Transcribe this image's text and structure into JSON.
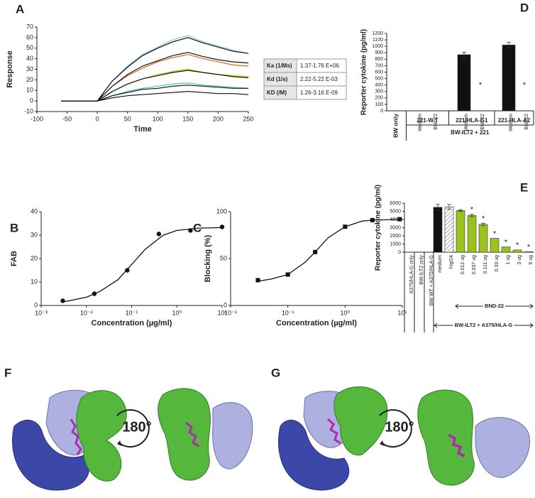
{
  "chart_data": [
    {
      "panel": "A",
      "type": "line",
      "xlabel": "Time",
      "ylabel": "Response",
      "xlim": [
        -100,
        250
      ],
      "xticks": [
        -100,
        -50,
        0,
        50,
        100,
        150,
        200,
        250
      ],
      "ylim": [
        -10,
        70
      ],
      "yticks": [
        -10,
        0,
        10,
        20,
        30,
        40,
        50,
        60,
        70
      ],
      "x": [
        -60,
        0,
        25,
        50,
        75,
        100,
        125,
        150,
        175,
        200,
        225,
        250
      ],
      "series": [
        {
          "color": "#8ec5e6",
          "values": [
            0,
            0,
            19,
            33,
            44,
            51,
            58,
            62,
            56,
            52,
            48,
            45
          ]
        },
        {
          "color": "#111111",
          "values": [
            0,
            0,
            19,
            32,
            43,
            50,
            56,
            60,
            55,
            51,
            47,
            45
          ]
        },
        {
          "color": "#e8601c",
          "values": [
            0,
            0,
            14,
            24,
            31,
            37,
            41,
            44,
            40,
            37,
            34,
            33
          ]
        },
        {
          "color": "#111111",
          "values": [
            0,
            0,
            14,
            25,
            33,
            38,
            43,
            46,
            42,
            39,
            37,
            36
          ]
        },
        {
          "color": "#c8c400",
          "values": [
            0,
            0,
            9,
            16,
            21,
            25,
            28,
            30,
            27,
            25,
            24,
            23
          ]
        },
        {
          "color": "#111111",
          "values": [
            0,
            0,
            9,
            16,
            21,
            24,
            27,
            29,
            27,
            25,
            23,
            22
          ]
        },
        {
          "color": "#3cc0c8",
          "values": [
            0,
            0,
            5,
            9,
            12,
            14,
            16,
            17,
            15,
            14,
            13,
            12
          ]
        },
        {
          "color": "#111111",
          "values": [
            0,
            0,
            5,
            8,
            11,
            12,
            14,
            15,
            14,
            13,
            12,
            12
          ]
        },
        {
          "color": "#111111",
          "values": [
            0,
            0,
            3,
            5,
            6,
            7,
            8,
            9,
            8,
            7,
            7,
            6
          ]
        }
      ]
    },
    {
      "panel": "D",
      "type": "bar",
      "ylabel": "Reporter cytokine (pg/ml)",
      "ylim": [
        0,
        1200
      ],
      "yticks": [
        0,
        100,
        200,
        300,
        400,
        500,
        600,
        700,
        800,
        900,
        1000,
        1100,
        1200
      ],
      "categories": [
        "BW only",
        "Medium",
        "BND22",
        "Medium",
        "BND22",
        "Medium",
        "BND22"
      ],
      "values": [
        0,
        0,
        0,
        870,
        0,
        1020,
        0
      ],
      "errors": [
        null,
        null,
        null,
        40,
        null,
        45,
        null
      ],
      "annotations": [
        null,
        null,
        null,
        null,
        "*",
        null,
        "*"
      ],
      "colors": [
        "#111111",
        "#111111",
        "#111111",
        "#111111",
        "#111111",
        "#111111",
        "#111111"
      ],
      "groups": [
        {
          "label": "221-W.T",
          "first": 1,
          "last": 2
        },
        {
          "label": "221/HLA-G1",
          "first": 3,
          "last": 4
        },
        {
          "label": "221-HLA-A2",
          "first": 5,
          "last": 6
        }
      ],
      "spans": [
        {
          "label": "BW-ILT2 + 221",
          "first": 1,
          "last": 6
        }
      ]
    },
    {
      "panel": "B",
      "type": "scatter",
      "xlabel": "Concentration (µg/ml)",
      "ylabel": "FAB",
      "log_x": true,
      "marker": "circle",
      "xlim": [
        0.001,
        10
      ],
      "xticks": [
        {
          "value": 0.001,
          "label": "10⁻³"
        },
        {
          "value": 0.01,
          "label": "10⁻²"
        },
        {
          "value": 0.1,
          "label": "10⁻¹"
        },
        {
          "value": 1,
          "label": "10⁰"
        },
        {
          "value": 10,
          "label": "10¹"
        }
      ],
      "ylim": [
        0,
        40
      ],
      "yticks": [
        0,
        10,
        20,
        30,
        40
      ],
      "x": [
        0.003,
        0.015,
        0.08,
        0.4,
        2,
        10
      ],
      "values": [
        2,
        5,
        15,
        30.5,
        32,
        33.5
      ],
      "fit": {
        "x": [
          0.003,
          0.01,
          0.02,
          0.05,
          0.1,
          0.2,
          0.5,
          1,
          3,
          10
        ],
        "values": [
          1.5,
          3.5,
          6,
          11,
          17.5,
          24,
          30,
          32,
          33,
          33.2
        ]
      }
    },
    {
      "panel": "C",
      "type": "scatter",
      "xlabel": "Concentration (µg/ml)",
      "ylabel": "Blocking (%)",
      "log_x": true,
      "marker": "square",
      "xlim": [
        0.01,
        10
      ],
      "xticks": [
        {
          "value": 0.01,
          "label": "10⁻²"
        },
        {
          "value": 0.1,
          "label": "10⁻¹"
        },
        {
          "value": 1,
          "label": "10⁰"
        },
        {
          "value": 10,
          "label": "10¹"
        }
      ],
      "ylim": [
        0,
        100
      ],
      "yticks": [
        0,
        50,
        100
      ],
      "x": [
        0.03,
        0.1,
        0.3,
        1,
        3,
        9
      ],
      "values": [
        27,
        33,
        57,
        84,
        91,
        92
      ],
      "fit": {
        "x": [
          0.03,
          0.05,
          0.1,
          0.2,
          0.3,
          0.5,
          1,
          2,
          3,
          10
        ],
        "values": [
          26,
          28,
          33,
          46,
          57,
          72,
          84,
          90,
          91,
          92
        ]
      }
    },
    {
      "panel": "E",
      "type": "bar",
      "ylabel": "Reporter cytokine (pg/ml)",
      "ylim": [
        0,
        6000
      ],
      "yticks": [
        0,
        1000,
        2000,
        3000,
        4000,
        5000,
        6000
      ],
      "categories": [
        "A375/HLA-G only",
        "BW-ILT2 only",
        "BW WT + A375/HLA-G",
        "medium",
        "hIgG4",
        "0.012 ug",
        "0.037 ug",
        "0.111 ug",
        "0.33 ug",
        "1 ug",
        "3 ug",
        "9 ug"
      ],
      "values": [
        0,
        0,
        0,
        5500,
        5550,
        5100,
        4500,
        3400,
        1700,
        650,
        280,
        60
      ],
      "errors": [
        null,
        null,
        null,
        350,
        300,
        100,
        150,
        150,
        null,
        null,
        null,
        null
      ],
      "annotations": [
        null,
        null,
        null,
        null,
        null,
        null,
        "*",
        "*",
        "*",
        "*",
        "*",
        "*"
      ],
      "colors": [
        "#111111",
        "#111111",
        "#111111",
        "#111111",
        "hatch",
        "#9bc31d",
        "#9bc31d",
        "#9bc31d",
        "#9bc31d",
        "#9bc31d",
        "#9bc31d",
        "#9bc31d"
      ],
      "spans": [
        {
          "label": "BND-22",
          "first": 5,
          "last": 11
        },
        {
          "label": "BW-ILT2 + A375/HLA-G",
          "first": 3,
          "last": 11
        }
      ]
    }
  ],
  "table": {
    "rows": [
      [
        "Ka (1/Ms)",
        "1.37-1.76 E+06"
      ],
      [
        "Kd (1/s)",
        "2.22-5.22 E-03"
      ],
      [
        "KD (/M)",
        "1.26-3.16 E-09"
      ]
    ]
  },
  "structures": [
    {
      "panel": "F",
      "rotation": "180°"
    },
    {
      "panel": "G",
      "rotation": "180°"
    }
  ]
}
